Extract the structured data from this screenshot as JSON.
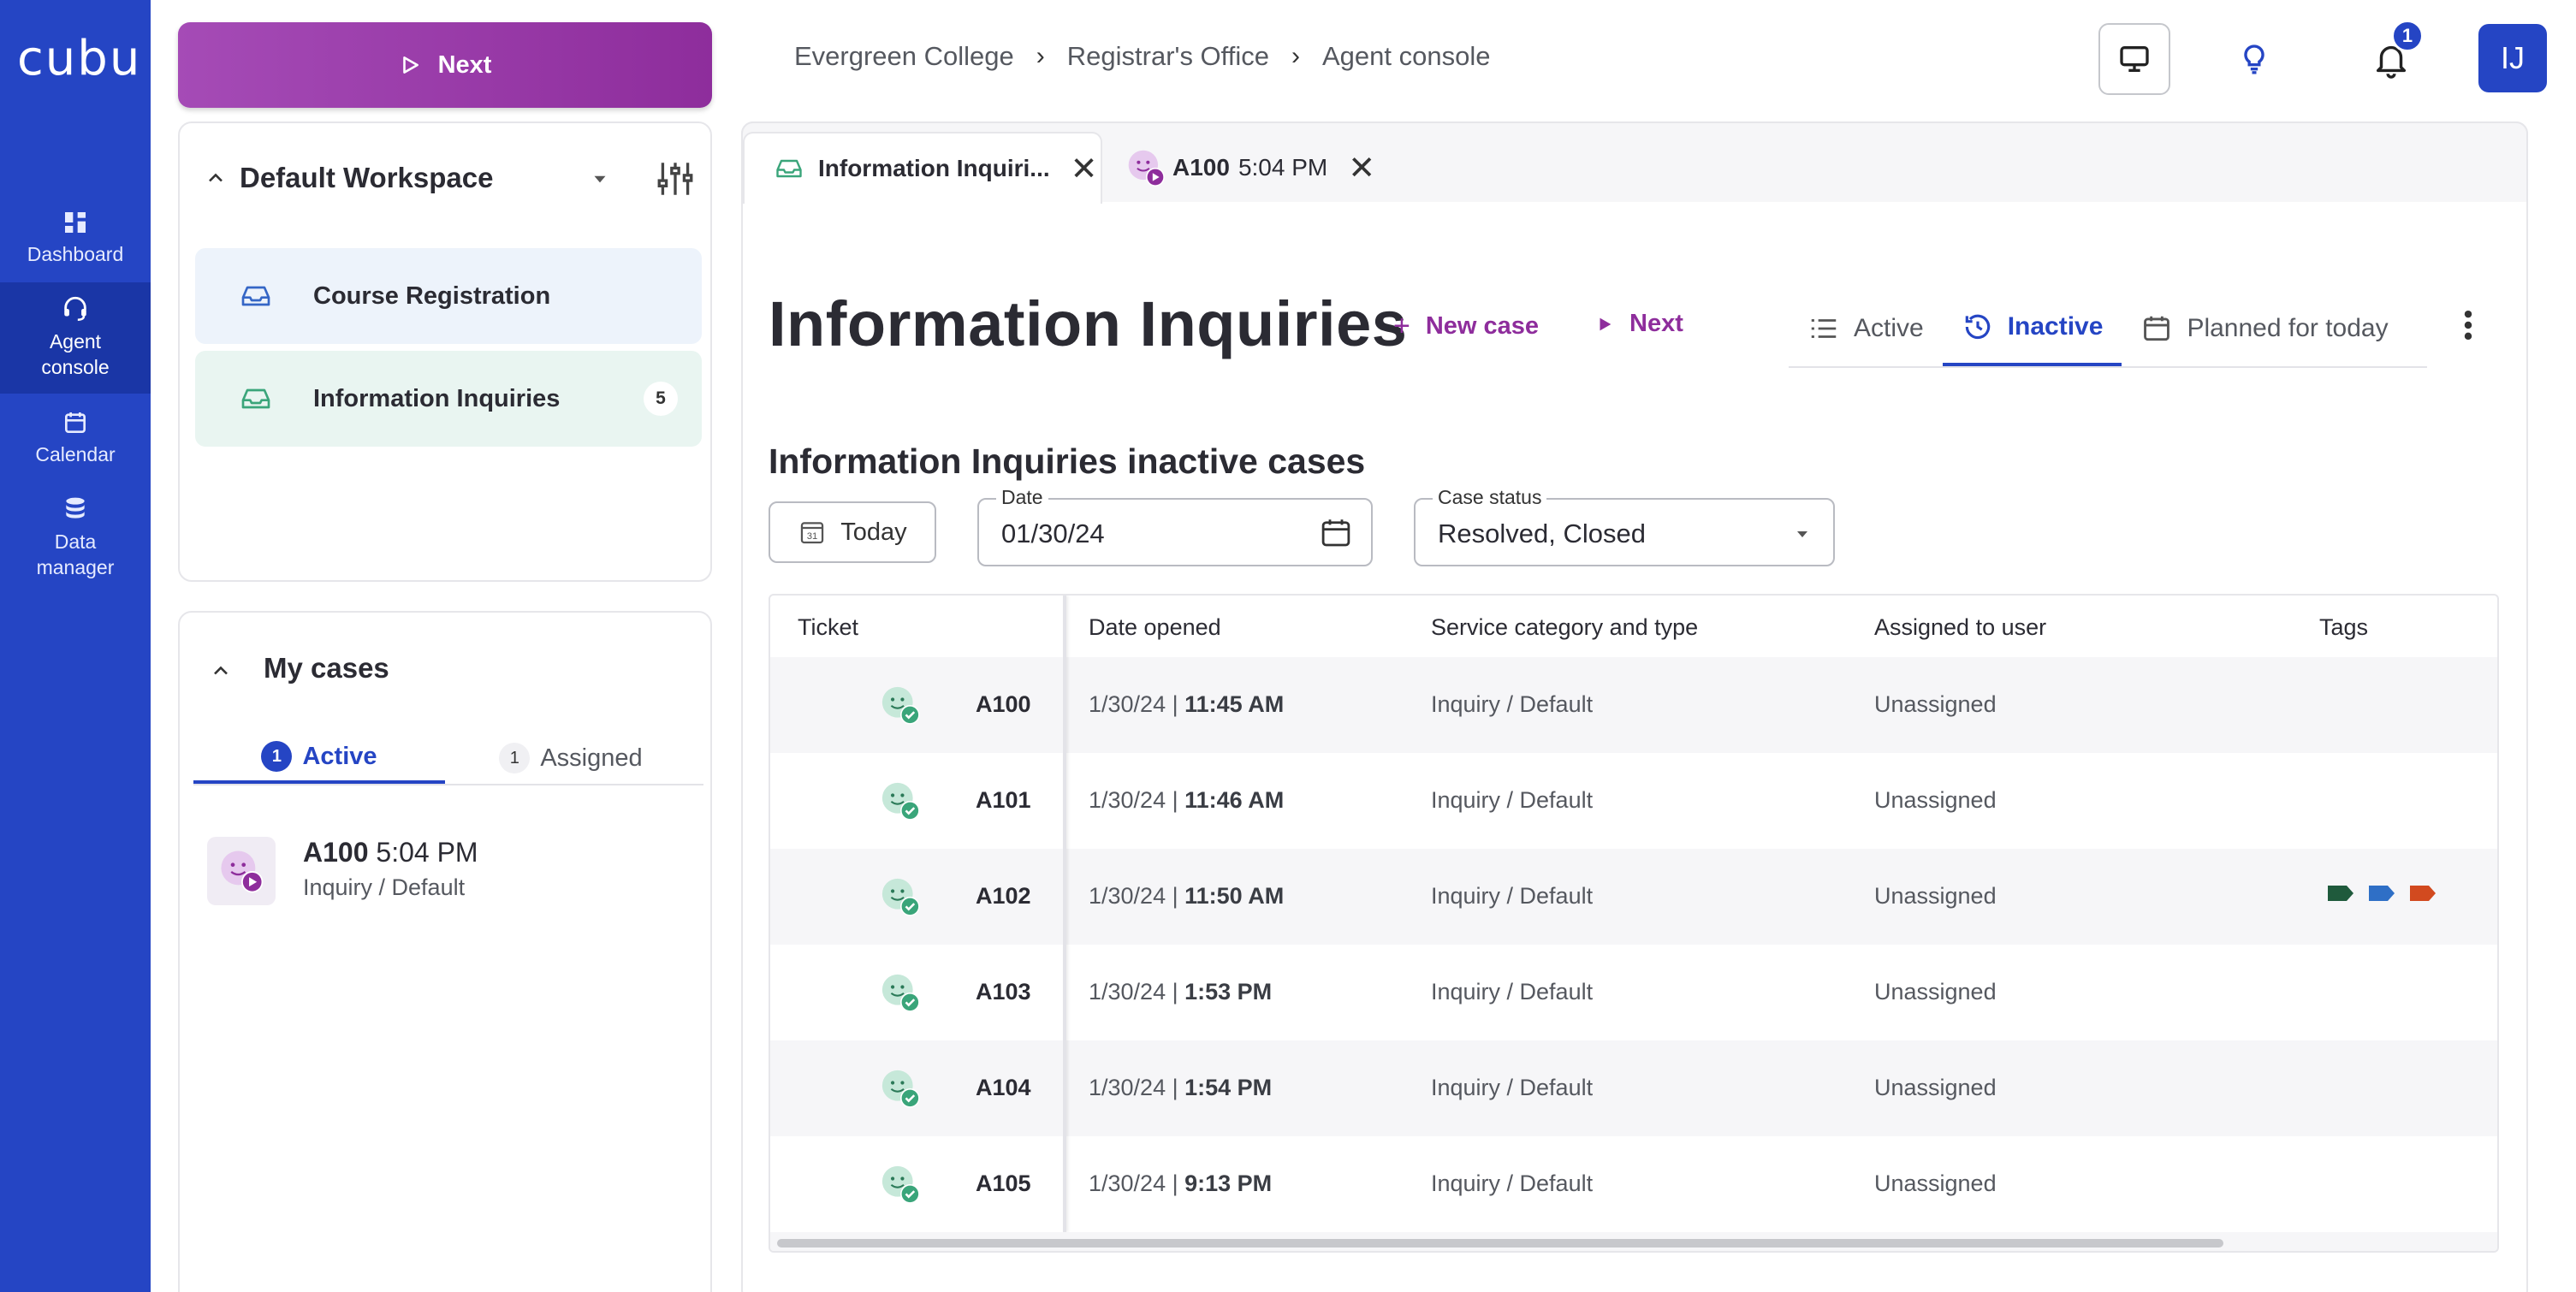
{
  "app": {
    "logo_text": "cubu"
  },
  "rail": {
    "items": [
      {
        "label": "Dashboard",
        "icon": "dashboard-icon"
      },
      {
        "label": "Agent console",
        "icon": "headset-icon",
        "active": true
      },
      {
        "label": "Calendar",
        "icon": "calendar-icon"
      },
      {
        "label": "Data manager",
        "icon": "database-icon"
      }
    ]
  },
  "next_button": {
    "label": "Next"
  },
  "breadcrumb": {
    "items": [
      "Evergreen College",
      "Registrar's Office",
      "Agent console"
    ]
  },
  "header": {
    "notifications_count": "1",
    "avatar_initials": "IJ"
  },
  "workspace": {
    "title": "Default Workspace",
    "queues": [
      {
        "label": "Course Registration",
        "count": ""
      },
      {
        "label": "Information Inquiries",
        "count": "5"
      }
    ]
  },
  "my_cases": {
    "title": "My cases",
    "tabs": [
      {
        "count": "1",
        "label": "Active"
      },
      {
        "count": "1",
        "label": "Assigned"
      }
    ],
    "case": {
      "id": "A100",
      "time": "5:04 PM",
      "type": "Inquiry / Default"
    }
  },
  "tabs": [
    {
      "label": "Information Inquiri..."
    },
    {
      "id": "A100",
      "time": "5:04 PM"
    }
  ],
  "page": {
    "title": "Information Inquiries",
    "new_case": "New case",
    "next": "Next",
    "view_tabs": [
      "Active",
      "Inactive",
      "Planned for today"
    ],
    "section_title": "Information Inquiries inactive cases",
    "today_label": "Today",
    "date_label": "Date",
    "date_value": "01/30/24",
    "status_label": "Case status",
    "status_value": "Resolved, Closed",
    "calendar_day": "31"
  },
  "table": {
    "columns": [
      "Ticket",
      "Date opened",
      "Service category and type",
      "Assigned to user",
      "Tags"
    ],
    "rows": [
      {
        "ticket": "A100",
        "date": "1/30/24 |",
        "time": "11:45 AM",
        "service": "Inquiry / Default",
        "assigned": "Unassigned",
        "tags": []
      },
      {
        "ticket": "A101",
        "date": "1/30/24 |",
        "time": "11:46 AM",
        "service": "Inquiry / Default",
        "assigned": "Unassigned",
        "tags": []
      },
      {
        "ticket": "A102",
        "date": "1/30/24 |",
        "time": "11:50 AM",
        "service": "Inquiry / Default",
        "assigned": "Unassigned",
        "tags": [
          "#1f5a3c",
          "#2f6fc6",
          "#d24a1f"
        ]
      },
      {
        "ticket": "A103",
        "date": "1/30/24 |",
        "time": "1:53 PM",
        "service": "Inquiry / Default",
        "assigned": "Unassigned",
        "tags": []
      },
      {
        "ticket": "A104",
        "date": "1/30/24 |",
        "time": "1:54 PM",
        "service": "Inquiry / Default",
        "assigned": "Unassigned",
        "tags": []
      },
      {
        "ticket": "A105",
        "date": "1/30/24 |",
        "time": "9:13 PM",
        "service": "Inquiry / Default",
        "assigned": "Unassigned",
        "tags": []
      }
    ]
  },
  "colors": {
    "brand": "#2545c4",
    "accent": "#8e2d9c",
    "teal": "#3aa57a"
  }
}
